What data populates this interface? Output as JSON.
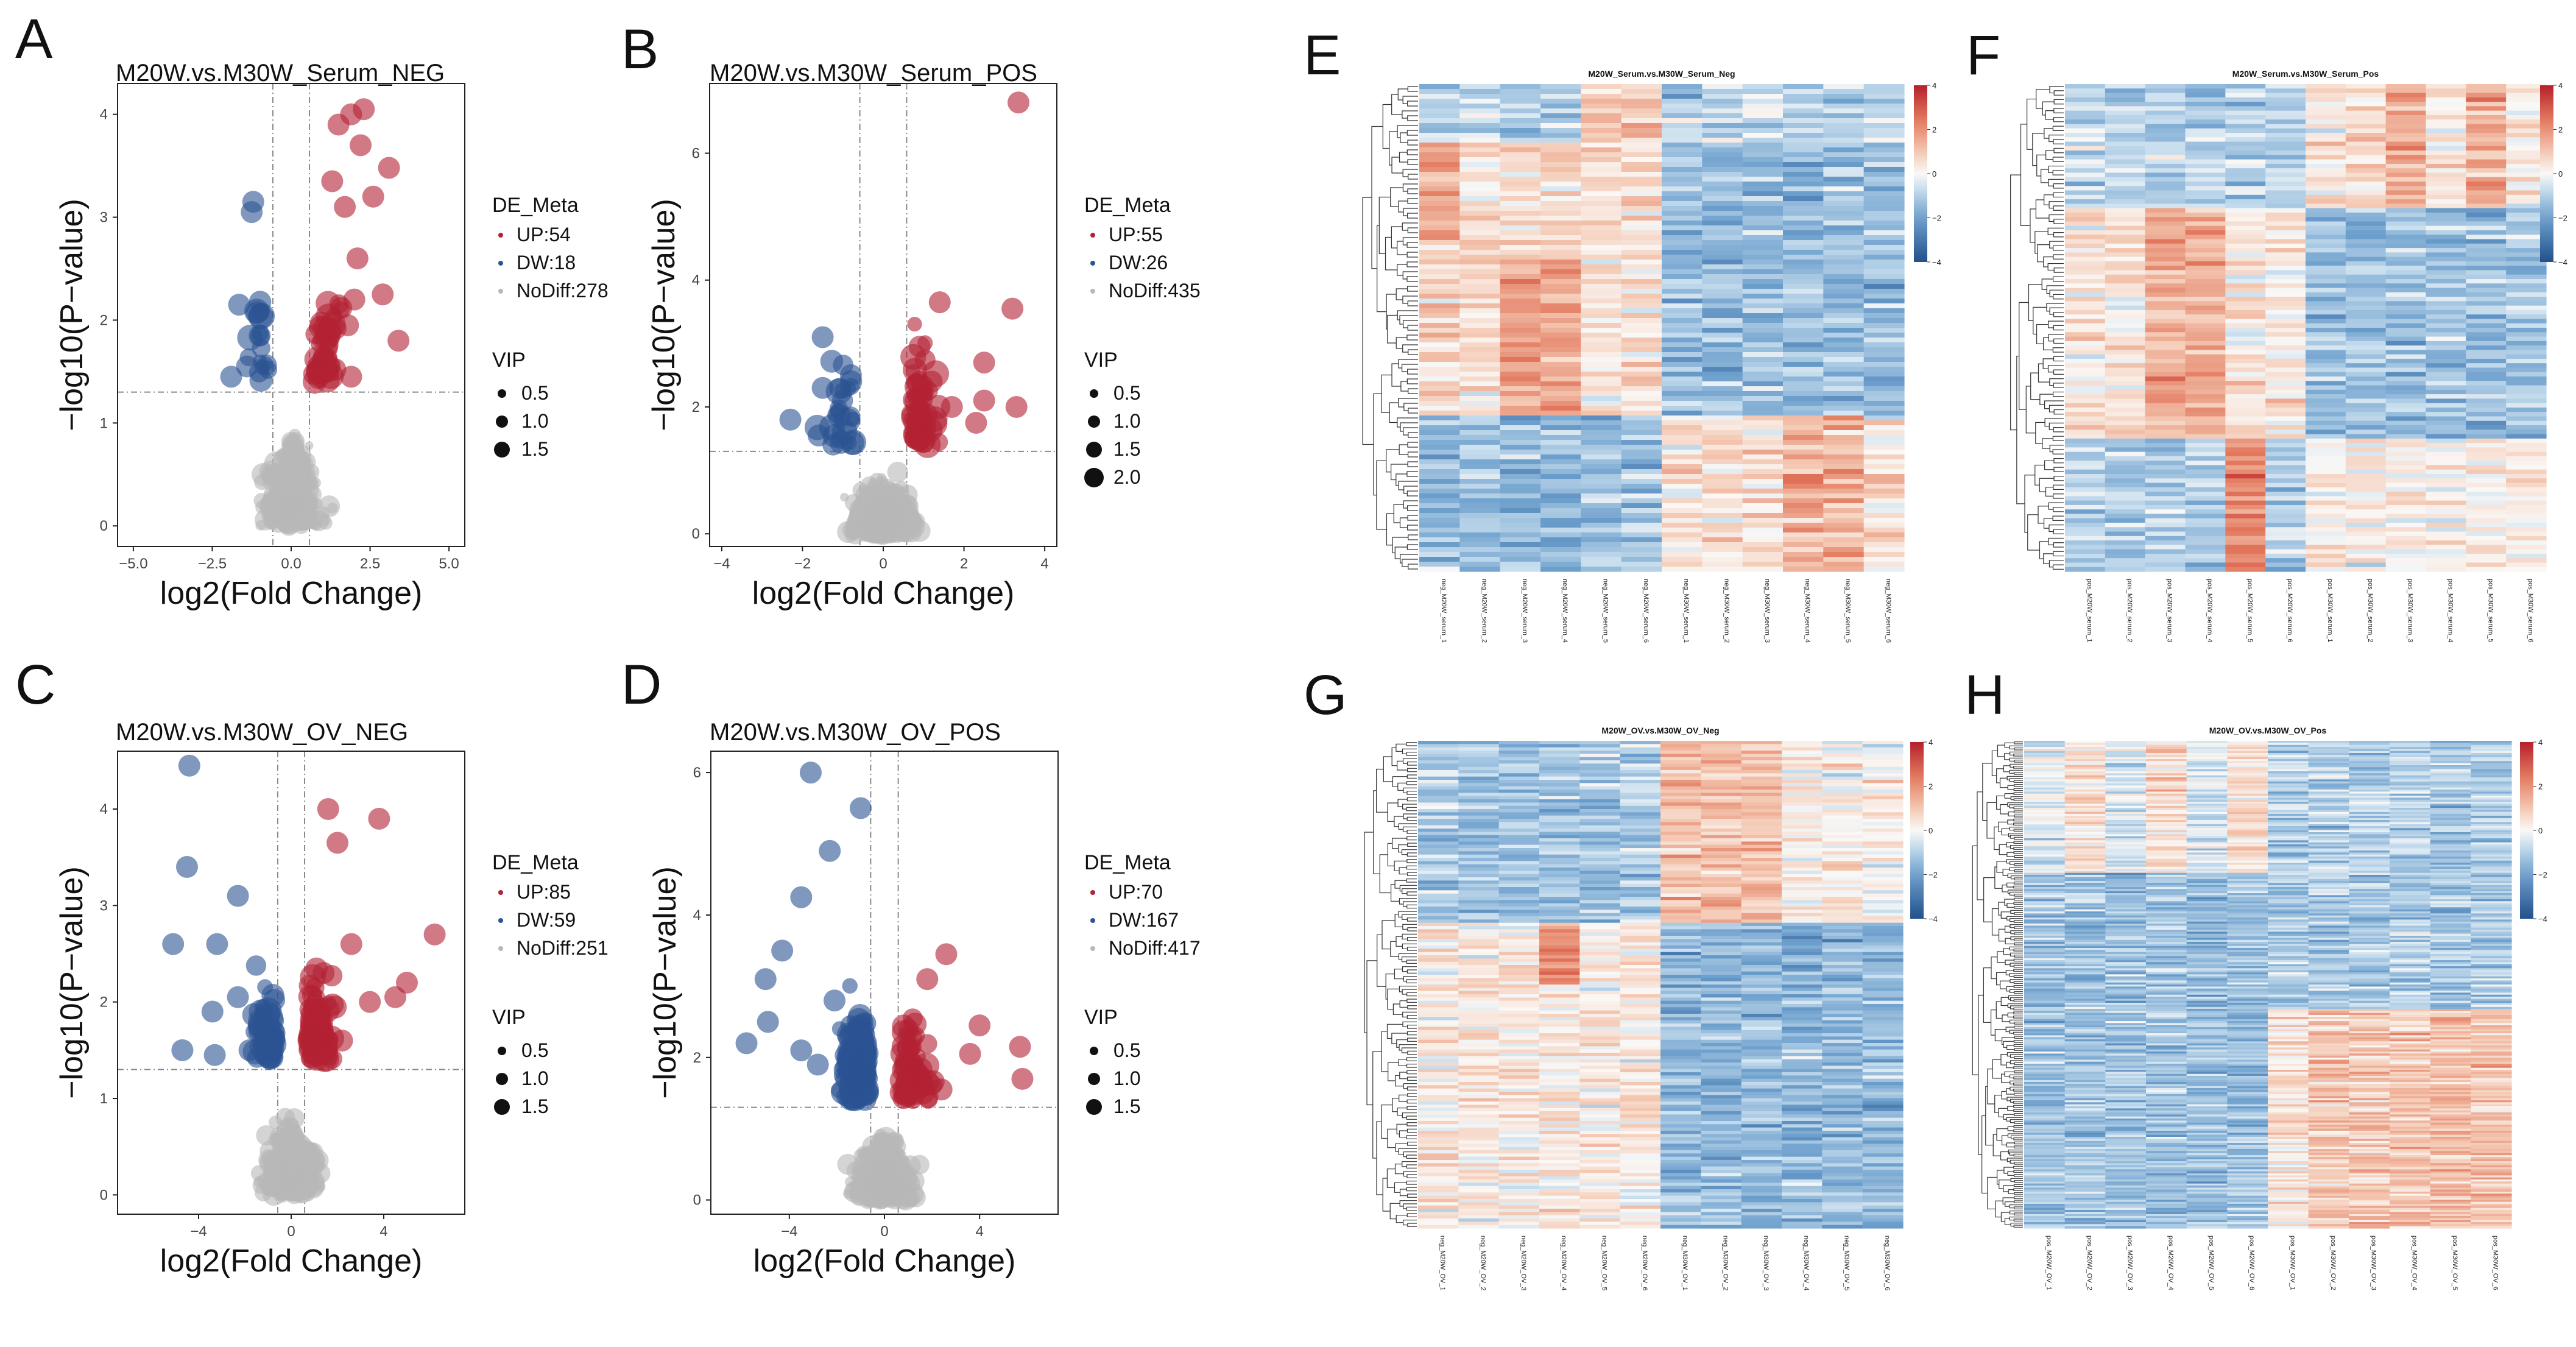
{
  "colors": {
    "up": "#b22234",
    "dw": "#2c5492",
    "nodiff": "#b8b8b8",
    "line": "#8a8a8a"
  },
  "volcano_common": {
    "xlabel": "log2(Fold Change)",
    "ylabel": "−log10(P−value)",
    "legend_title": "DE_Meta",
    "vip_title": "VIP"
  },
  "heatmap_common": {
    "scale_ticks": [
      "4",
      "2",
      "0",
      "−2",
      "−4"
    ]
  },
  "chart_data": [
    {
      "panel": "A",
      "type": "scatter",
      "title": "M20W.vs.M30W_Serum_NEG",
      "xlim": [
        -5.5,
        5.5
      ],
      "ylim": [
        -0.2,
        4.3
      ],
      "xticks": [
        -5,
        -2.5,
        0,
        2.5,
        5
      ],
      "xticklabels": [
        "−5.0",
        "−2.5",
        "0.0",
        "2.5",
        "5.0"
      ],
      "yticks": [
        0,
        1,
        2,
        3,
        4
      ],
      "yticklabels": [
        "0",
        "1",
        "2",
        "3",
        "4"
      ],
      "fc_cut": 0.58,
      "p_cut": 1.3,
      "legend": {
        "up": "UP:54",
        "dw": "DW:18",
        "nodiff": "NoDiff:278"
      },
      "vip_sizes": [
        "0.5",
        "1.0",
        "1.5"
      ],
      "highlight": [
        {
          "g": "up",
          "x": 1.9,
          "y": 4.0
        },
        {
          "g": "up",
          "x": 2.3,
          "y": 4.05
        },
        {
          "g": "up",
          "x": 1.5,
          "y": 3.9
        },
        {
          "g": "up",
          "x": 3.1,
          "y": 3.48
        },
        {
          "g": "up",
          "x": 2.2,
          "y": 3.7
        },
        {
          "g": "up",
          "x": 1.3,
          "y": 3.35
        },
        {
          "g": "up",
          "x": 2.6,
          "y": 3.2
        },
        {
          "g": "up",
          "x": 1.7,
          "y": 3.1
        },
        {
          "g": "up",
          "x": 2.9,
          "y": 2.25
        },
        {
          "g": "up",
          "x": 2.0,
          "y": 2.2
        },
        {
          "g": "up",
          "x": 1.8,
          "y": 1.95
        },
        {
          "g": "up",
          "x": 3.4,
          "y": 1.8
        },
        {
          "g": "up",
          "x": 1.9,
          "y": 1.45
        },
        {
          "g": "up",
          "x": 2.1,
          "y": 2.6
        },
        {
          "g": "dw",
          "x": -1.2,
          "y": 3.15
        },
        {
          "g": "dw",
          "x": -1.25,
          "y": 3.05
        },
        {
          "g": "dw",
          "x": -1.65,
          "y": 2.15
        },
        {
          "g": "dw",
          "x": -1.0,
          "y": 1.85
        },
        {
          "g": "dw",
          "x": -1.9,
          "y": 1.45
        },
        {
          "g": "dw",
          "x": -1.4,
          "y": 1.55
        }
      ]
    },
    {
      "panel": "B",
      "type": "scatter",
      "title": "M20W.vs.M30W_Serum_POS",
      "xlim": [
        -4.3,
        4.3
      ],
      "ylim": [
        -0.2,
        7.1
      ],
      "xticks": [
        -4,
        -2,
        0,
        2,
        4
      ],
      "xticklabels": [
        "−4",
        "−2",
        "0",
        "2",
        "4"
      ],
      "yticks": [
        0,
        2,
        4,
        6
      ],
      "yticklabels": [
        "0",
        "2",
        "4",
        "6"
      ],
      "fc_cut": 0.58,
      "p_cut": 1.3,
      "legend": {
        "up": "UP:55",
        "dw": "DW:26",
        "nodiff": "NoDiff:435"
      },
      "vip_sizes": [
        "0.5",
        "1.0",
        "1.5",
        "2.0"
      ],
      "highlight": [
        {
          "g": "up",
          "x": 3.35,
          "y": 6.8
        },
        {
          "g": "up",
          "x": 3.2,
          "y": 3.55
        },
        {
          "g": "up",
          "x": 1.4,
          "y": 3.65
        },
        {
          "g": "up",
          "x": 0.9,
          "y": 2.95
        },
        {
          "g": "up",
          "x": 2.5,
          "y": 2.7
        },
        {
          "g": "up",
          "x": 1.2,
          "y": 2.4
        },
        {
          "g": "up",
          "x": 2.5,
          "y": 2.1
        },
        {
          "g": "up",
          "x": 3.3,
          "y": 2.0
        },
        {
          "g": "up",
          "x": 1.7,
          "y": 2.0
        },
        {
          "g": "up",
          "x": 0.8,
          "y": 1.5
        },
        {
          "g": "up",
          "x": 2.3,
          "y": 1.75
        },
        {
          "g": "dw",
          "x": -1.5,
          "y": 3.1
        },
        {
          "g": "dw",
          "x": -1.5,
          "y": 2.3
        },
        {
          "g": "dw",
          "x": -0.8,
          "y": 2.5
        },
        {
          "g": "dw",
          "x": -2.3,
          "y": 1.8
        },
        {
          "g": "dw",
          "x": -1.6,
          "y": 1.55
        }
      ]
    },
    {
      "panel": "C",
      "type": "scatter",
      "title": "M20W.vs.M30W_OV_NEG",
      "xlim": [
        -7.5,
        7.5
      ],
      "ylim": [
        -0.2,
        4.6
      ],
      "xticks": [
        -4,
        0,
        4
      ],
      "xticklabels": [
        "−4",
        "0",
        "4"
      ],
      "yticks": [
        0,
        1,
        2,
        3,
        4
      ],
      "yticklabels": [
        "0",
        "1",
        "2",
        "3",
        "4"
      ],
      "fc_cut": 0.58,
      "p_cut": 1.3,
      "legend": {
        "up": "UP:85",
        "dw": "DW:59",
        "nodiff": "NoDiff:251"
      },
      "vip_sizes": [
        "0.5",
        "1.0",
        "1.5"
      ],
      "highlight": [
        {
          "g": "dw",
          "x": -4.4,
          "y": 4.45
        },
        {
          "g": "dw",
          "x": -2.3,
          "y": 3.1
        },
        {
          "g": "dw",
          "x": -4.5,
          "y": 3.4
        },
        {
          "g": "dw",
          "x": -3.2,
          "y": 2.6
        },
        {
          "g": "dw",
          "x": -5.1,
          "y": 2.6
        },
        {
          "g": "dw",
          "x": -2.3,
          "y": 2.05
        },
        {
          "g": "dw",
          "x": -3.4,
          "y": 1.9
        },
        {
          "g": "dw",
          "x": -3.3,
          "y": 1.45
        },
        {
          "g": "dw",
          "x": -1.8,
          "y": 1.5
        },
        {
          "g": "dw",
          "x": -4.7,
          "y": 1.5
        },
        {
          "g": "up",
          "x": 1.6,
          "y": 4.0
        },
        {
          "g": "up",
          "x": 3.8,
          "y": 3.9
        },
        {
          "g": "up",
          "x": 2.0,
          "y": 3.65
        },
        {
          "g": "up",
          "x": 6.2,
          "y": 2.7
        },
        {
          "g": "up",
          "x": 2.6,
          "y": 2.6
        },
        {
          "g": "up",
          "x": 5.0,
          "y": 2.2
        },
        {
          "g": "up",
          "x": 3.4,
          "y": 2.0
        },
        {
          "g": "up",
          "x": 4.5,
          "y": 2.05
        },
        {
          "g": "up",
          "x": 1.4,
          "y": 2.3
        },
        {
          "g": "up",
          "x": 2.2,
          "y": 1.6
        },
        {
          "g": "up",
          "x": 1.2,
          "y": 1.45
        }
      ]
    },
    {
      "panel": "D",
      "type": "scatter",
      "title": "M20W.vs.M30W_OV_POS",
      "xlim": [
        -7.3,
        7.3
      ],
      "ylim": [
        -0.2,
        6.3
      ],
      "xticks": [
        -4,
        0,
        4
      ],
      "xticklabels": [
        "−4",
        "0",
        "4"
      ],
      "yticks": [
        0,
        2,
        4,
        6
      ],
      "yticklabels": [
        "0",
        "2",
        "4",
        "6"
      ],
      "fc_cut": 0.58,
      "p_cut": 1.3,
      "legend": {
        "up": "UP:70",
        "dw": "DW:167",
        "nodiff": "NoDiff:417"
      },
      "vip_sizes": [
        "0.5",
        "1.0",
        "1.5"
      ],
      "highlight": [
        {
          "g": "dw",
          "x": -3.1,
          "y": 6.0
        },
        {
          "g": "dw",
          "x": -1.0,
          "y": 5.5
        },
        {
          "g": "dw",
          "x": -2.3,
          "y": 4.9
        },
        {
          "g": "dw",
          "x": -3.5,
          "y": 4.25
        },
        {
          "g": "dw",
          "x": -4.3,
          "y": 3.5
        },
        {
          "g": "dw",
          "x": -5.0,
          "y": 3.1
        },
        {
          "g": "dw",
          "x": -5.8,
          "y": 2.2
        },
        {
          "g": "dw",
          "x": -4.9,
          "y": 2.5
        },
        {
          "g": "dw",
          "x": -3.5,
          "y": 2.1
        },
        {
          "g": "dw",
          "x": -2.1,
          "y": 2.8
        },
        {
          "g": "dw",
          "x": -1.5,
          "y": 1.8
        },
        {
          "g": "dw",
          "x": -2.8,
          "y": 1.9
        },
        {
          "g": "up",
          "x": 2.6,
          "y": 3.45
        },
        {
          "g": "up",
          "x": 1.8,
          "y": 3.1
        },
        {
          "g": "up",
          "x": 4.0,
          "y": 2.45
        },
        {
          "g": "up",
          "x": 5.7,
          "y": 2.15
        },
        {
          "g": "up",
          "x": 3.6,
          "y": 2.05
        },
        {
          "g": "up",
          "x": 5.8,
          "y": 1.7
        },
        {
          "g": "up",
          "x": 1.4,
          "y": 1.75
        },
        {
          "g": "up",
          "x": 2.4,
          "y": 1.55
        }
      ]
    },
    {
      "panel": "E",
      "type": "heatmap",
      "title": "M20W_Serum.vs.M30W_Serum_Neg",
      "seed": 11,
      "rows": 100,
      "pattern": "serum_neg",
      "columns": [
        "neg_M20W_serum_1",
        "neg_M20W_serum_2",
        "neg_M20W_serum_3",
        "neg_M20W_serum_4",
        "neg_M20W_serum_5",
        "neg_M20W_serum_6",
        "neg_M30W_serum_1",
        "neg_M30W_serum_2",
        "neg_M30W_serum_3",
        "neg_M30W_serum_4",
        "neg_M30W_serum_5",
        "neg_M30W_serum_6"
      ]
    },
    {
      "panel": "F",
      "type": "heatmap",
      "title": "M20W_Serum.vs.M30W_Serum_Pos",
      "seed": 23,
      "rows": 110,
      "pattern": "serum_pos",
      "columns": [
        "pos_M20W_serum_1",
        "pos_M20W_serum_2",
        "pos_M20W_serum_3",
        "pos_M20W_serum_4",
        "pos_M20W_serum_5",
        "pos_M20W_serum_6",
        "pos_M30W_serum_1",
        "pos_M30W_serum_2",
        "pos_M30W_serum_3",
        "pos_M30W_serum_4",
        "pos_M30W_serum_5",
        "pos_M30W_serum_6"
      ]
    },
    {
      "panel": "G",
      "type": "heatmap",
      "title": "M20W_OV.vs.M30W_OV_Neg",
      "seed": 37,
      "rows": 150,
      "pattern": "ov_neg",
      "columns": [
        "neg_M20W_OV_1",
        "neg_M20W_OV_2",
        "neg_M20W_OV_3",
        "neg_M20W_OV_4",
        "neg_M20W_OV_5",
        "neg_M20W_OV_6",
        "neg_M30W_OV_1",
        "neg_M30W_OV_2",
        "neg_M30W_OV_3",
        "neg_M30W_OV_4",
        "neg_M30W_OV_5",
        "neg_M30W_OV_6"
      ]
    },
    {
      "panel": "H",
      "type": "heatmap",
      "title": "M20W_OV.vs.M30W_OV_Pos",
      "seed": 53,
      "rows": 240,
      "pattern": "ov_pos",
      "columns": [
        "pos_M20W_OV_1",
        "pos_M20W_OV_2",
        "pos_M20W_OV_3",
        "pos_M20W_OV_4",
        "pos_M20W_OV_5",
        "pos_M20W_OV_6",
        "pos_M30W_OV_1",
        "pos_M30W_OV_2",
        "pos_M30W_OV_3",
        "pos_M30W_OV_4",
        "pos_M30W_OV_5",
        "pos_M30W_OV_6"
      ]
    }
  ]
}
